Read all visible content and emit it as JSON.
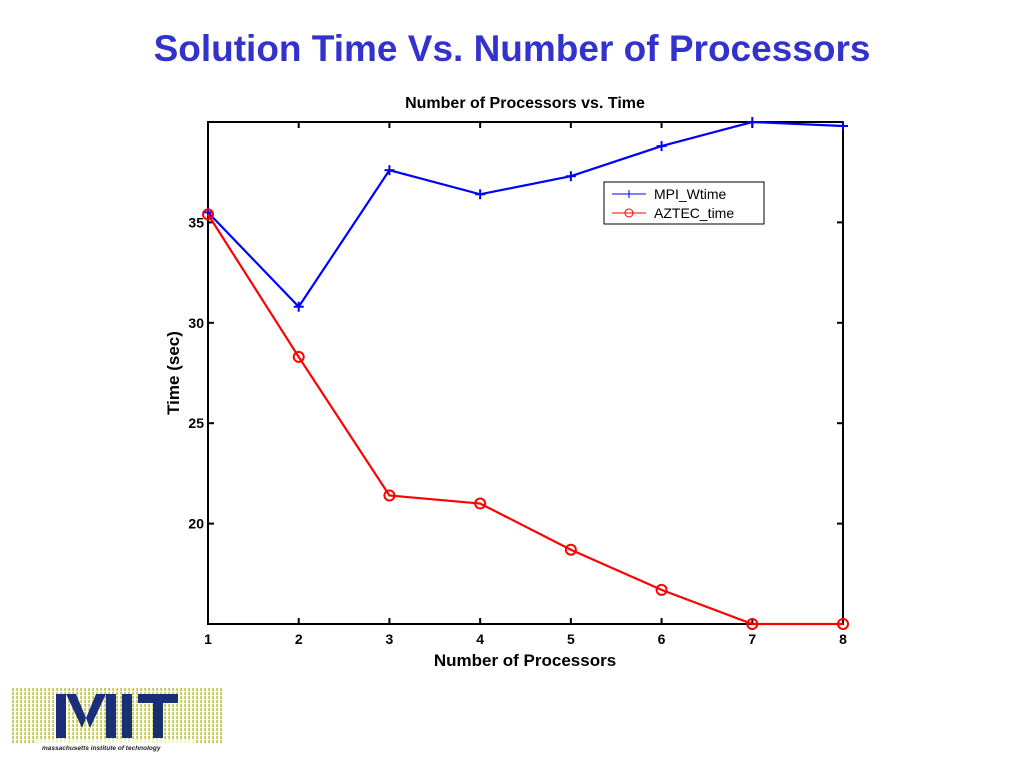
{
  "slide": {
    "title": "Solution Time Vs. Number of Processors"
  },
  "logo": {
    "text": "MIT",
    "caption": "massachusetts institute of technology"
  },
  "chart_data": {
    "type": "line",
    "title": "Number of Processors vs. Time",
    "xlabel": "Number of Processors",
    "ylabel": "Time (sec)",
    "xlim": [
      1,
      8
    ],
    "ylim": [
      15,
      40
    ],
    "x_ticks": [
      "1",
      "2",
      "3",
      "4",
      "5",
      "6",
      "7",
      "8"
    ],
    "y_ticks": [
      "20",
      "25",
      "30",
      "35"
    ],
    "y_tick_values": [
      20,
      25,
      30,
      35
    ],
    "grid": false,
    "legend_position": "top-right",
    "x": [
      1,
      2,
      3,
      4,
      5,
      6,
      7,
      8
    ],
    "series": [
      {
        "name": "MPI_Wtime",
        "color": "#0000ff",
        "marker": "plus",
        "values": [
          35.5,
          30.8,
          37.6,
          36.4,
          37.3,
          38.8,
          40.0,
          39.8
        ]
      },
      {
        "name": "AZTEC_time",
        "color": "#ff0000",
        "marker": "circle",
        "values": [
          35.4,
          28.3,
          21.4,
          21.0,
          18.7,
          16.7,
          15.0,
          15.0
        ]
      }
    ]
  }
}
